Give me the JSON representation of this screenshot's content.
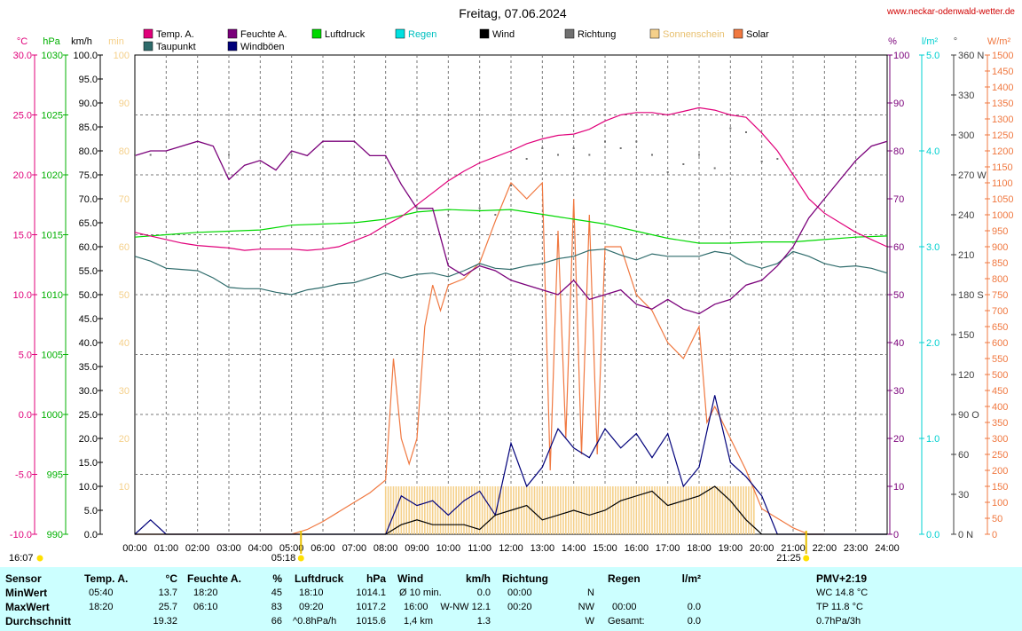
{
  "header": {
    "title": "Freitag, 07.06.2024",
    "url": "www.neckar-odenwald-wetter.de"
  },
  "legend": [
    {
      "label": "Temp. A.",
      "color": "#e0007a"
    },
    {
      "label": "Taupunkt",
      "color": "#2e6b6b"
    },
    {
      "label": "Feuchte A.",
      "color": "#7a007a"
    },
    {
      "label": "Windböen",
      "color": "#00007a"
    },
    {
      "label": "Luftdruck",
      "color": "#00d800"
    },
    {
      "label": "Regen",
      "color": "#00e0e0"
    },
    {
      "label": "Wind",
      "color": "#000000"
    },
    {
      "label": "Richtung",
      "color": "#707070"
    },
    {
      "label": "Sonnenschein",
      "color": "#f5d08a"
    },
    {
      "label": "Solar",
      "color": "#f07840"
    }
  ],
  "axes": {
    "temp": {
      "unit": "°C",
      "color": "#e0007a",
      "ticks": [
        "30.0",
        "25.0",
        "20.0",
        "15.0",
        "10.0",
        "5.0",
        "0.0",
        "-5.0",
        "-10.0"
      ]
    },
    "press": {
      "unit": "hPa",
      "color": "#00b000",
      "ticks": [
        "1030",
        "1025",
        "1020",
        "1015",
        "1010",
        "1005",
        "1000",
        "995",
        "990"
      ]
    },
    "wind": {
      "unit": "km/h",
      "color": "#000000",
      "ticks": [
        "100.0",
        "95.0",
        "90.0",
        "85.0",
        "80.0",
        "75.0",
        "70.0",
        "65.0",
        "60.0",
        "55.0",
        "50.0",
        "45.0",
        "40.0",
        "35.0",
        "30.0",
        "25.0",
        "20.0",
        "15.0",
        "10.0",
        "5.0",
        "0.0"
      ]
    },
    "sun": {
      "unit": "min",
      "color": "#f5d08a",
      "ticks": [
        "100",
        "90",
        "80",
        "70",
        "60",
        "50",
        "40",
        "30",
        "20",
        "10"
      ]
    },
    "hum": {
      "unit": "%",
      "color": "#7a007a",
      "ticks": [
        "100",
        "90",
        "80",
        "70",
        "60",
        "50",
        "40",
        "30",
        "20",
        "10",
        "0"
      ]
    },
    "rain": {
      "unit": "l/m²",
      "color": "#00d0d0",
      "ticks": [
        "5.0",
        "4.0",
        "3.0",
        "2.0",
        "1.0",
        "0.0"
      ]
    },
    "dir": {
      "unit": "°",
      "color": "#505050",
      "ticks": [
        "360 N",
        "330",
        "300",
        "270 W",
        "240",
        "210",
        "180 S",
        "150",
        "120",
        "90 O",
        "60",
        "30",
        "0 N"
      ]
    },
    "solar": {
      "unit": "W/m²",
      "color": "#f07840",
      "ticks": [
        "1500",
        "1450",
        "1400",
        "1350",
        "1300",
        "1250",
        "1200",
        "1150",
        "1100",
        "1050",
        "1000",
        "950",
        "900",
        "850",
        "800",
        "750",
        "700",
        "650",
        "600",
        "550",
        "500",
        "450",
        "400",
        "350",
        "300",
        "250",
        "200",
        "150",
        "100",
        "50",
        "0"
      ]
    },
    "x": {
      "ticks": [
        "00:00",
        "01:00",
        "02:00",
        "03:00",
        "04:00",
        "05:00",
        "06:00",
        "07:00",
        "08:00",
        "09:00",
        "10:00",
        "11:00",
        "12:00",
        "13:00",
        "14:00",
        "15:00",
        "16:00",
        "17:00",
        "18:00",
        "19:00",
        "20:00",
        "21:00",
        "22:00",
        "23:00",
        "24:00"
      ]
    }
  },
  "markers": {
    "sunrise": "05:18",
    "sunset": "21:25",
    "current": "16:07"
  },
  "chart_data": {
    "type": "line",
    "title": "Freitag, 07.06.2024",
    "x_unit": "hours",
    "series": [
      {
        "name": "Temp. A.",
        "unit": "°C",
        "color": "#e0007a",
        "x": [
          0,
          0.5,
          1,
          1.5,
          2,
          2.5,
          3,
          3.5,
          4,
          4.5,
          5,
          5.5,
          6,
          6.5,
          7,
          7.5,
          8,
          8.5,
          9,
          9.5,
          10,
          10.5,
          11,
          11.5,
          12,
          12.5,
          13,
          13.5,
          14,
          14.5,
          15,
          15.5,
          16,
          16.5,
          17,
          17.5,
          18,
          18.5,
          19,
          19.5,
          20,
          20.5,
          21,
          21.5,
          22,
          22.5,
          23,
          23.5,
          24
        ],
        "y": [
          15.2,
          14.9,
          14.6,
          14.3,
          14.1,
          14.0,
          13.9,
          13.7,
          13.8,
          13.8,
          13.8,
          13.7,
          13.8,
          14.0,
          14.5,
          15.0,
          15.8,
          16.5,
          17.5,
          18.5,
          19.5,
          20.3,
          21.0,
          21.5,
          22.0,
          22.6,
          23.0,
          23.3,
          23.4,
          23.8,
          24.5,
          25.0,
          25.2,
          25.2,
          25.0,
          25.3,
          25.6,
          25.4,
          25.0,
          24.8,
          23.5,
          22.0,
          20.0,
          18.0,
          16.8,
          16.0,
          15.2,
          14.6,
          14.0
        ]
      },
      {
        "name": "Taupunkt",
        "unit": "°C",
        "color": "#2e6b6b",
        "x": [
          0,
          0.5,
          1,
          1.5,
          2,
          2.5,
          3,
          3.5,
          4,
          4.5,
          5,
          5.5,
          6,
          6.5,
          7,
          7.5,
          8,
          8.5,
          9,
          9.5,
          10,
          10.5,
          11,
          11.5,
          12,
          12.5,
          13,
          13.5,
          14,
          14.5,
          15,
          15.5,
          16,
          16.5,
          17,
          17.5,
          18,
          18.5,
          19,
          19.5,
          20,
          20.5,
          21,
          21.5,
          22,
          22.5,
          23,
          23.5,
          24
        ],
        "y": [
          13.2,
          12.8,
          12.2,
          12.1,
          12.0,
          11.4,
          10.6,
          10.5,
          10.5,
          10.2,
          10.0,
          10.4,
          10.6,
          10.9,
          11.0,
          11.4,
          11.8,
          11.4,
          11.7,
          11.8,
          11.5,
          12.0,
          12.6,
          12.2,
          12.1,
          12.4,
          12.6,
          13.0,
          13.2,
          13.7,
          13.8,
          13.3,
          12.9,
          13.4,
          13.2,
          13.2,
          13.2,
          13.6,
          13.4,
          12.6,
          12.2,
          12.6,
          13.6,
          13.2,
          12.6,
          12.3,
          12.4,
          12.2,
          11.8
        ]
      },
      {
        "name": "Feuchte A.",
        "unit": "%",
        "color": "#7a007a",
        "x": [
          0,
          0.5,
          1,
          1.5,
          2,
          2.5,
          3,
          3.5,
          4,
          4.5,
          5,
          5.5,
          6,
          6.5,
          7,
          7.5,
          8,
          8.5,
          9,
          9.5,
          10,
          10.5,
          11,
          11.5,
          12,
          12.5,
          13,
          13.5,
          14,
          14.5,
          15,
          15.5,
          16,
          16.5,
          17,
          17.5,
          18,
          18.5,
          19,
          19.5,
          20,
          20.5,
          21,
          21.5,
          22,
          22.5,
          23,
          23.5,
          24
        ],
        "y": [
          79,
          80,
          80,
          81,
          82,
          81,
          74,
          77,
          78,
          76,
          80,
          79,
          82,
          82,
          82,
          79,
          79,
          73,
          68,
          68,
          56,
          54,
          56,
          55,
          53,
          52,
          51,
          50,
          53,
          49,
          50,
          51,
          48,
          47,
          49,
          47,
          46,
          48,
          49,
          52,
          53,
          56,
          60,
          66,
          70,
          74,
          78,
          81,
          82
        ]
      },
      {
        "name": "Luftdruck",
        "unit": "hPa",
        "color": "#00d800",
        "x": [
          0,
          1,
          2,
          3,
          4,
          5,
          6,
          7,
          8,
          9,
          10,
          11,
          12,
          13,
          14,
          15,
          16,
          17,
          18,
          19,
          20,
          21,
          22,
          23,
          24
        ],
        "y": [
          1014.8,
          1015.0,
          1015.2,
          1015.3,
          1015.4,
          1015.8,
          1015.9,
          1016.0,
          1016.3,
          1016.9,
          1017.1,
          1017.0,
          1017.1,
          1016.7,
          1016.3,
          1015.9,
          1015.3,
          1014.7,
          1014.3,
          1014.3,
          1014.4,
          1014.4,
          1014.6,
          1014.8,
          1014.9
        ]
      },
      {
        "name": "Windböen",
        "unit": "km/h",
        "color": "#00007a",
        "x": [
          0,
          0.5,
          1,
          1.5,
          2,
          2.5,
          3,
          3.5,
          4,
          4.5,
          5,
          5.5,
          6,
          6.5,
          7,
          7.5,
          8,
          8.5,
          9,
          9.5,
          10,
          10.5,
          11,
          11.5,
          12,
          12.5,
          13,
          13.5,
          14,
          14.5,
          15,
          15.5,
          16,
          16.5,
          17,
          17.5,
          18,
          18.5,
          19,
          19.5,
          20,
          20.5,
          21,
          21.5,
          22,
          22.5,
          23,
          23.5,
          24
        ],
        "y": [
          0,
          3,
          0,
          0,
          0,
          0,
          0,
          0,
          0,
          0,
          0,
          0,
          0,
          0,
          0,
          0,
          0,
          8,
          6,
          7,
          4,
          7,
          9,
          4,
          19,
          10,
          14,
          22,
          18,
          16,
          22,
          18,
          21,
          16,
          21,
          10,
          14,
          29,
          15,
          12,
          8,
          0,
          0,
          0,
          0,
          0,
          0,
          0,
          0
        ]
      },
      {
        "name": "Wind",
        "unit": "km/h",
        "color": "#000000",
        "x": [
          0,
          1,
          2,
          3,
          4,
          5,
          6,
          7,
          8,
          8.5,
          9,
          9.5,
          10,
          10.5,
          11,
          11.5,
          12,
          12.5,
          13,
          13.5,
          14,
          14.5,
          15,
          15.5,
          16,
          16.5,
          17,
          17.5,
          18,
          18.5,
          19,
          19.5,
          20,
          21,
          22,
          23,
          24
        ],
        "y": [
          0,
          0,
          0,
          0,
          0,
          0,
          0,
          0,
          0,
          2,
          3,
          2,
          2,
          2,
          1,
          4,
          5,
          6,
          3,
          4,
          5,
          4,
          5,
          7,
          8,
          9,
          6,
          7,
          8,
          10,
          7,
          3,
          0,
          0,
          0,
          0,
          0
        ]
      },
      {
        "name": "Solar",
        "unit": "W/m²",
        "color": "#f07840",
        "x": [
          0,
          4,
          5,
          5.5,
          6,
          6.5,
          7,
          7.5,
          8,
          8.25,
          8.5,
          8.75,
          9,
          9.25,
          9.5,
          9.75,
          10,
          10.5,
          11,
          11.5,
          12,
          12.5,
          13,
          13.25,
          13.5,
          13.75,
          14,
          14.25,
          14.5,
          14.75,
          15,
          15.5,
          16,
          16.5,
          17,
          17.5,
          18,
          18.25,
          18.5,
          19,
          19.5,
          20,
          20.5,
          21,
          21.5,
          22
        ],
        "y": [
          0,
          0,
          0,
          15,
          40,
          70,
          100,
          130,
          170,
          550,
          300,
          220,
          300,
          650,
          780,
          700,
          780,
          800,
          850,
          980,
          1100,
          1050,
          1100,
          200,
          950,
          300,
          1050,
          250,
          1000,
          250,
          900,
          900,
          750,
          700,
          600,
          550,
          650,
          350,
          400,
          300,
          200,
          80,
          50,
          20,
          0,
          0
        ]
      },
      {
        "name": "Sonnenschein",
        "unit": "min",
        "color": "#f5d08a",
        "x": [
          8,
          9,
          10,
          11,
          12,
          13,
          14,
          15,
          16,
          17,
          18,
          19,
          19.75
        ],
        "y": [
          10,
          10,
          10,
          10,
          10,
          10,
          10,
          10,
          10,
          10,
          10,
          10,
          10
        ]
      },
      {
        "name": "Richtung",
        "unit": "°",
        "color": "#707070",
        "x": [
          0,
          0.5,
          3,
          5,
          9,
          10,
          11,
          11.5,
          12,
          12.5,
          13,
          13.5,
          14,
          14.5,
          15,
          15.5,
          16,
          16.5,
          17,
          17.5,
          18,
          18.5,
          19,
          19.5,
          20,
          20.5
        ],
        "y": [
          285,
          285,
          285,
          285,
          245,
          240,
          245,
          240,
          262,
          282,
          290,
          285,
          290,
          285,
          295,
          290,
          295,
          285,
          272,
          278,
          285,
          275,
          305,
          302,
          280,
          282
        ]
      }
    ],
    "x_range": [
      0,
      24
    ],
    "y_ranges": {
      "°C": [
        -10,
        30
      ],
      "hPa": [
        990,
        1030
      ],
      "km/h": [
        0,
        100
      ],
      "min": [
        0,
        100
      ],
      "%": [
        0,
        100
      ],
      "l/m²": [
        0,
        5
      ],
      "°": [
        0,
        360
      ],
      "W/m²": [
        0,
        1500
      ]
    },
    "grid": true
  },
  "table": {
    "columns": [
      {
        "title": "Sensor"
      },
      {
        "title": "Temp. A.",
        "unit": "°C"
      },
      {
        "title": "Feuchte A.",
        "unit": "%"
      },
      {
        "title": "Luftdruck",
        "unit": "hPa"
      },
      {
        "title": "Wind",
        "unit": "km/h"
      },
      {
        "title": "Richtung",
        "unit": ""
      },
      {
        "title": "Regen",
        "unit": "l/m²"
      },
      {
        "title": "PMV+2:19",
        "unit": ""
      }
    ],
    "rows": [
      {
        "label": "MinWert",
        "temp_t": "05:40",
        "temp_v": "13.7",
        "hum_t": "18:20",
        "hum_v": "45",
        "press_t": "18:10",
        "press_v": "1014.1",
        "wind_t": "Ø 10 min.",
        "wind_v": "0.0",
        "dir_t": "00:00",
        "dir_v": "N",
        "rain_t": "",
        "rain_v": "",
        "pmv": "WC 14.8 °C"
      },
      {
        "label": "MaxWert",
        "temp_t": "18:20",
        "temp_v": "25.7",
        "hum_t": "06:10",
        "hum_v": "83",
        "press_t": "09:20",
        "press_v": "1017.2",
        "wind_t": "16:00",
        "wind_v": "W-NW 12.1",
        "dir_t": "00:20",
        "dir_v": "NW",
        "rain_t": "00:00",
        "rain_v": "0.0",
        "pmv": "TP 11.8 °C"
      },
      {
        "label": "Durchschnitt",
        "temp_t": "",
        "temp_v": "19.32",
        "hum_t": "",
        "hum_v": "66",
        "press_t": "^0.8hPa/h",
        "press_v": "1015.6",
        "wind_t": "1,4 km",
        "wind_v": "1.3",
        "dir_t": "",
        "dir_v": "W",
        "rain_t": "Gesamt:",
        "rain_v": "0.0",
        "pmv": "0.7hPa/3h"
      }
    ]
  }
}
